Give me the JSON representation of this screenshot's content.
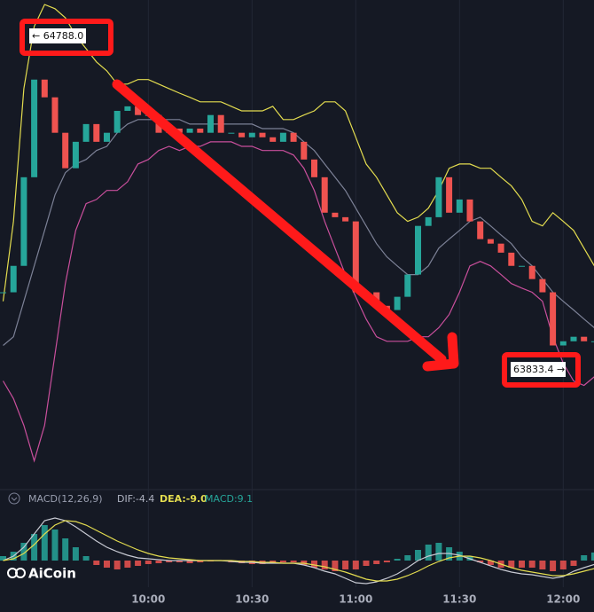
{
  "chart_data": [
    {
      "type": "candlestick",
      "categories": [
        null,
        null,
        null,
        null,
        null,
        null,
        null,
        null,
        null,
        null,
        null,
        null,
        null,
        null,
        "10:00",
        null,
        null,
        null,
        null,
        null,
        null,
        null,
        null,
        null,
        "10:30",
        null,
        null,
        null,
        null,
        null,
        null,
        null,
        null,
        null,
        "11:00",
        null,
        null,
        null,
        null,
        null,
        null,
        null,
        null,
        null,
        "11:30",
        null,
        null,
        null,
        null,
        null,
        null,
        null,
        null,
        null,
        "12:00",
        null,
        null,
        null
      ],
      "close": [
        64073,
        64155,
        64430,
        64733,
        64678,
        64568,
        64458,
        64540,
        64595,
        64540,
        64568,
        64636,
        64650,
        64623,
        64623,
        64568,
        64581,
        64568,
        64581,
        64568,
        64623,
        64568,
        64568,
        64554,
        64568,
        64554,
        64540,
        64568,
        64540,
        64485,
        64430,
        64320,
        64306,
        64293,
        64073,
        64073,
        64031,
        64018,
        64059,
        64128,
        64279,
        64306,
        64430,
        64320,
        64361,
        64293,
        64238,
        64224,
        64196,
        64155,
        64155,
        64114,
        64073,
        63908,
        63921,
        63935,
        63921,
        63921
      ],
      "up_color": "#26a69a",
      "down_color": "#ef5350",
      "ylim": [
        63480,
        64980
      ],
      "bands": [
        {
          "color": "#e3dc4f",
          "values": [
            64045,
            64293,
            64705,
            64898,
            64966,
            64953,
            64925,
            64870,
            64829,
            64788,
            64760,
            64719,
            64719,
            64733,
            64733,
            64719,
            64705,
            64691,
            64678,
            64664,
            64664,
            64664,
            64650,
            64636,
            64636,
            64636,
            64650,
            64609,
            64609,
            64623,
            64636,
            64664,
            64664,
            64636,
            64554,
            64471,
            64430,
            64375,
            64320,
            64293,
            64306,
            64334,
            64389,
            64458,
            64471,
            64471,
            64458,
            64458,
            64430,
            64403,
            64361,
            64293,
            64279,
            64320,
            64293,
            64265,
            64210,
            64155
          ]
        },
        {
          "color": "#7c8196",
          "values": [
            63908,
            63935,
            64045,
            64155,
            64265,
            64375,
            64444,
            64471,
            64485,
            64513,
            64526,
            64568,
            64595,
            64609,
            64609,
            64609,
            64609,
            64609,
            64595,
            64595,
            64595,
            64595,
            64595,
            64595,
            64595,
            64581,
            64581,
            64581,
            64568,
            64540,
            64513,
            64471,
            64430,
            64389,
            64334,
            64279,
            64224,
            64183,
            64155,
            64128,
            64128,
            64155,
            64210,
            64238,
            64265,
            64293,
            64306,
            64279,
            64251,
            64224,
            64183,
            64155,
            64114,
            64073,
            64045,
            64018,
            63990,
            63963
          ]
        },
        {
          "color": "#c94f9c",
          "values": [
            63798,
            63743,
            63660,
            63550,
            63660,
            63880,
            64100,
            64265,
            64348,
            64361,
            64389,
            64389,
            64416,
            64471,
            64485,
            64513,
            64526,
            64513,
            64526,
            64526,
            64540,
            64540,
            64540,
            64526,
            64526,
            64513,
            64513,
            64513,
            64499,
            64458,
            64389,
            64293,
            64210,
            64128,
            64059,
            63990,
            63935,
            63921,
            63921,
            63921,
            63935,
            63935,
            63963,
            64004,
            64073,
            64155,
            64169,
            64155,
            64128,
            64100,
            64086,
            64073,
            64045,
            63935,
            63853,
            63798,
            63784,
            63811
          ]
        }
      ],
      "annotations": [
        {
          "text": "← 64788.0"
        },
        {
          "text": "63833.4 →"
        }
      ]
    },
    {
      "type": "macd",
      "title": "MACD(12,26,9)",
      "legend": [
        {
          "text": "DIF:-4.4",
          "color": "#b0b4c2"
        },
        {
          "text": "DEA:-9.0",
          "color": "#e3dc4f"
        },
        {
          "text": "MACD:9.1",
          "color": "#26a69a"
        }
      ],
      "ylim": [
        -40,
        70
      ],
      "up_color": "#26a69a",
      "down_color": "#ef5350",
      "histogram": [
        5,
        10,
        20,
        30,
        40,
        35,
        25,
        15,
        5,
        -5,
        -8,
        -10,
        -8,
        -6,
        -4,
        -3,
        -2,
        -2,
        -3,
        -2,
        -1,
        0,
        -2,
        -3,
        -4,
        -4,
        -3,
        -2,
        -2,
        -5,
        -8,
        -10,
        -12,
        -10,
        -10,
        -6,
        -4,
        -2,
        2,
        6,
        12,
        18,
        20,
        15,
        10,
        5,
        -2,
        -5,
        -8,
        -8,
        -8,
        -8,
        -10,
        -12,
        -10,
        -6,
        6,
        9.1
      ],
      "series": [
        {
          "color": "#c8cad3",
          "values": [
            0,
            5,
            15,
            30,
            45,
            48,
            45,
            38,
            30,
            22,
            15,
            10,
            6,
            3,
            2,
            1,
            0,
            0,
            0,
            0,
            0,
            0,
            -1,
            -2,
            -2,
            -3,
            -3,
            -3,
            -3,
            -5,
            -8,
            -12,
            -15,
            -20,
            -25,
            -26,
            -24,
            -20,
            -15,
            -8,
            0,
            5,
            8,
            8,
            6,
            2,
            -2,
            -6,
            -10,
            -13,
            -15,
            -16,
            -18,
            -20,
            -18,
            -12,
            -8,
            -4.4
          ]
        },
        {
          "color": "#e3dc4f",
          "values": [
            0,
            2,
            8,
            18,
            30,
            40,
            45,
            44,
            40,
            34,
            28,
            22,
            17,
            12,
            8,
            5,
            3,
            2,
            1,
            0,
            0,
            0,
            0,
            -1,
            -1,
            -2,
            -2,
            -3,
            -3,
            -3,
            -5,
            -7,
            -10,
            -13,
            -17,
            -21,
            -23,
            -23,
            -21,
            -17,
            -12,
            -6,
            -1,
            3,
            5,
            5,
            3,
            0,
            -4,
            -8,
            -11,
            -13,
            -15,
            -17,
            -17,
            -15,
            -12,
            -9.0
          ]
        }
      ],
      "watermark": "AiCoin"
    }
  ]
}
